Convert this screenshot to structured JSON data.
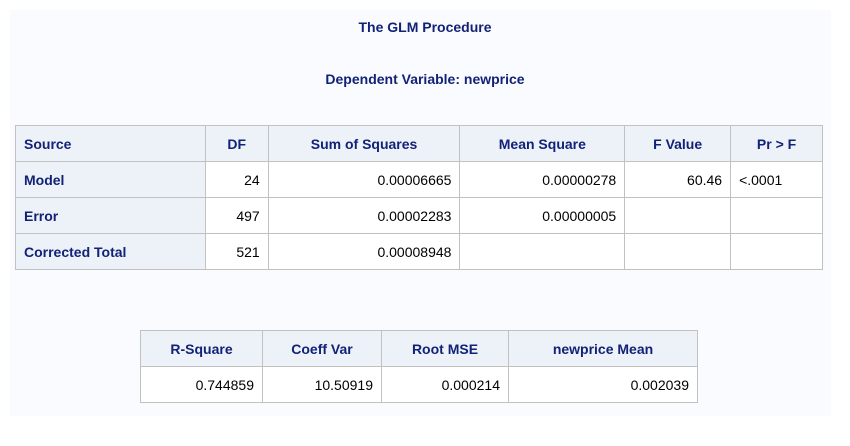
{
  "titles": {
    "procedure": "The GLM Procedure",
    "dependent": "Dependent Variable: newprice"
  },
  "anova": {
    "headers": [
      "Source",
      "DF",
      "Sum of Squares",
      "Mean Square",
      "F Value",
      "Pr > F"
    ],
    "rows": [
      {
        "source": "Model",
        "df": "24",
        "ss": "0.00006665",
        "ms": "0.00000278",
        "f": "60.46",
        "p": "<.0001"
      },
      {
        "source": "Error",
        "df": "497",
        "ss": "0.00002283",
        "ms": "0.00000005",
        "f": "",
        "p": ""
      },
      {
        "source": "Corrected Total",
        "df": "521",
        "ss": "0.00008948",
        "ms": "",
        "f": "",
        "p": ""
      }
    ]
  },
  "fit": {
    "headers": [
      "R-Square",
      "Coeff Var",
      "Root MSE",
      "newprice Mean"
    ],
    "values": [
      "0.744859",
      "10.50919",
      "0.000214",
      "0.002039"
    ]
  },
  "colors": {
    "title": "#112277",
    "header_bg": "#edf2f9",
    "border": "#c1c1c1",
    "panel_bg": "#fafbfe"
  }
}
